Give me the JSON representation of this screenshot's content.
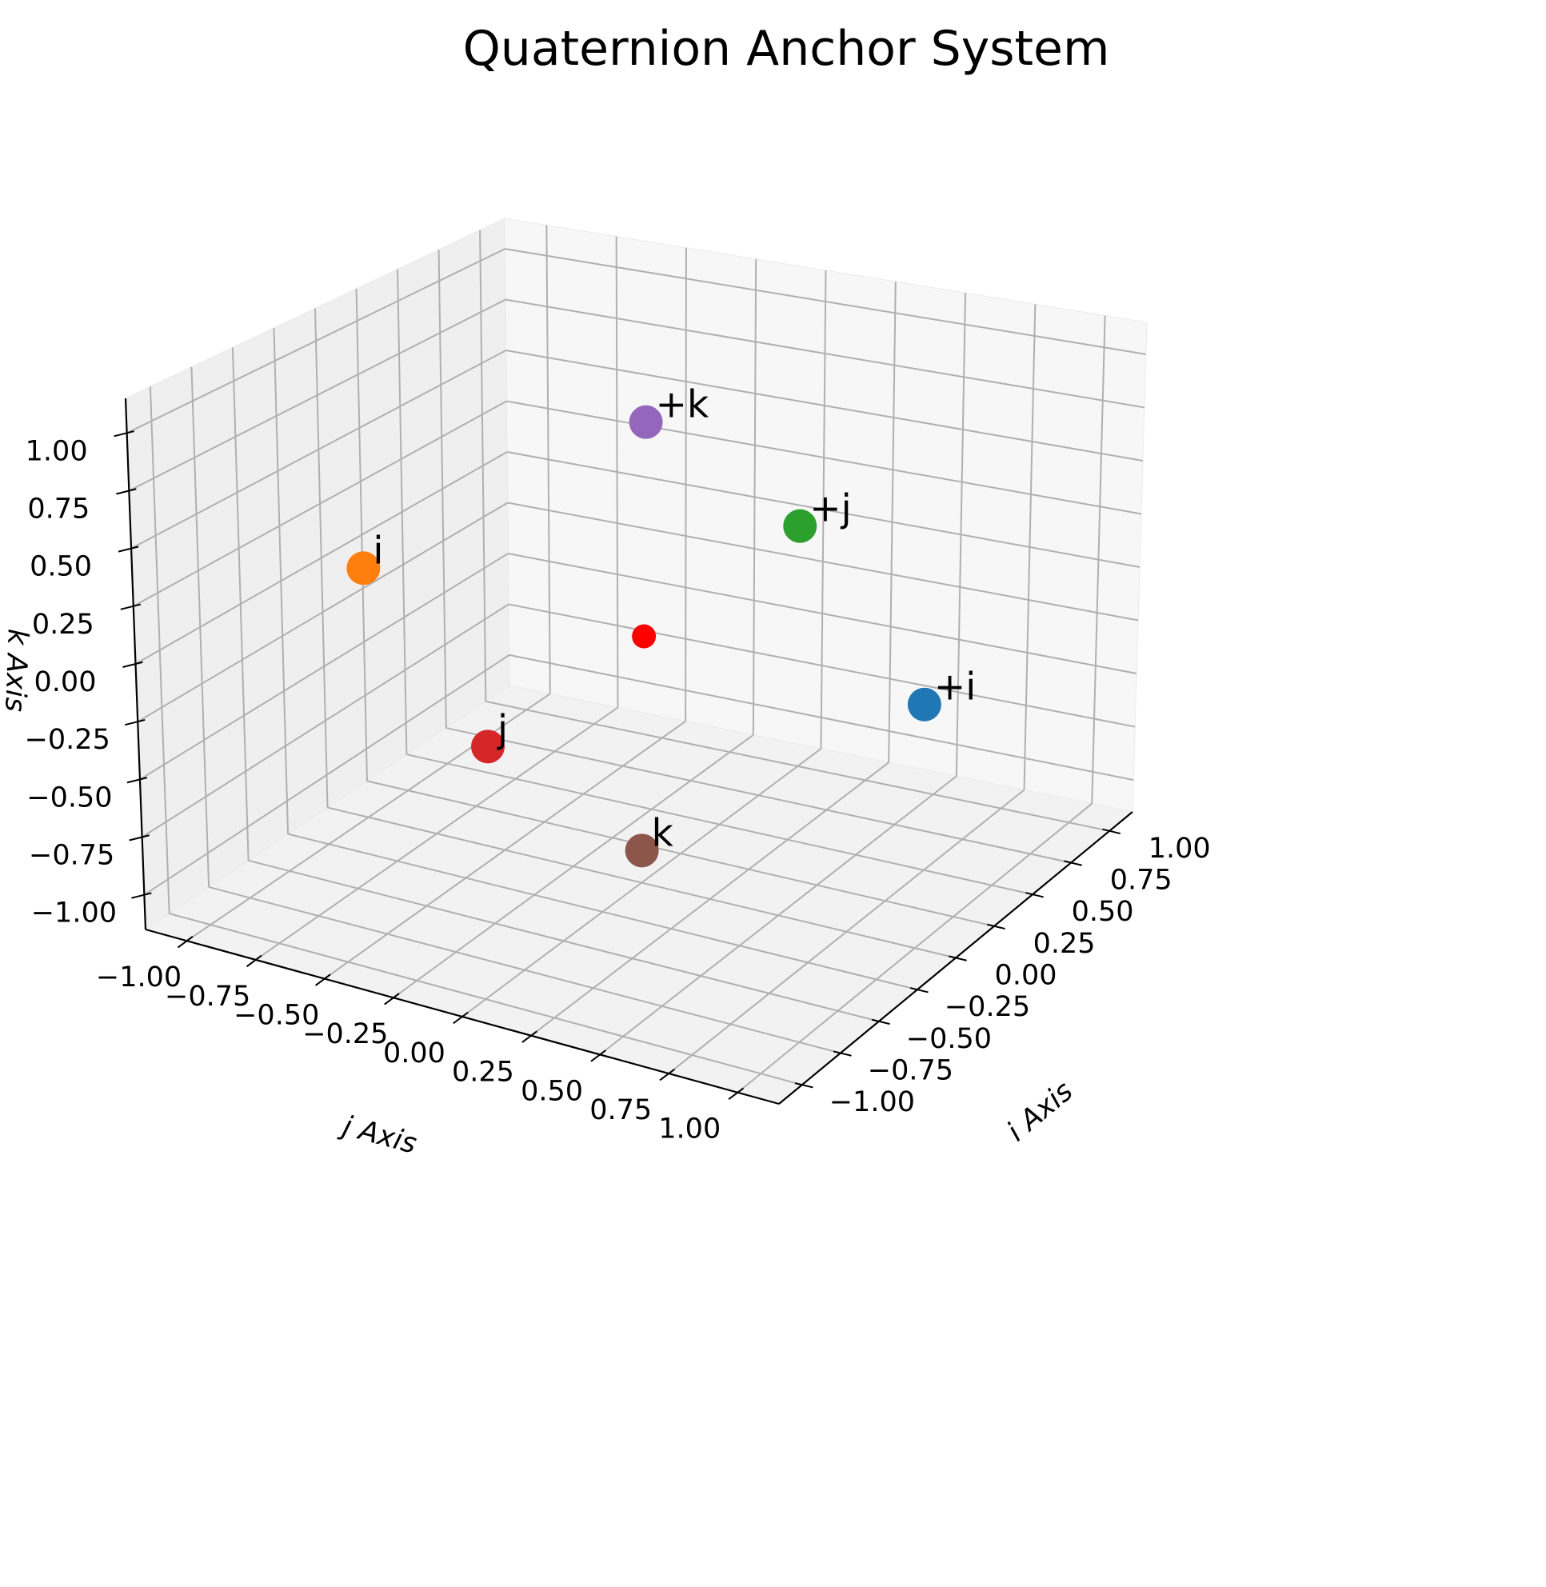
{
  "chart_data": {
    "type": "scatter3d",
    "title": "Quaternion Anchor System",
    "xlabel": "i Axis",
    "ylabel": "j Axis",
    "zlabel": "k Axis",
    "xlim": [
      -1.15,
      1.15
    ],
    "ylim": [
      -1.15,
      1.15
    ],
    "zlim": [
      -1.15,
      1.15
    ],
    "grid": true,
    "ticks": {
      "x": [
        "−1.00",
        "−0.75",
        "−0.50",
        "−0.25",
        "0.00",
        "0.25",
        "0.50",
        "0.75",
        "1.00"
      ],
      "y": [
        "−1.00",
        "−0.75",
        "−0.50",
        "−0.25",
        "0.00",
        "0.25",
        "0.50",
        "0.75",
        "1.00"
      ],
      "z": [
        "−1.00",
        "−0.75",
        "−0.50",
        "−0.25",
        "0.00",
        "0.25",
        "0.50",
        "0.75",
        "1.00"
      ]
    },
    "points": [
      {
        "label": "+i",
        "x": 1,
        "y": 0,
        "z": 0,
        "color": "#1f77b4"
      },
      {
        "label": "i",
        "x": -1,
        "y": 0,
        "z": 0,
        "color": "#ff7f0e"
      },
      {
        "label": "+j",
        "x": 0,
        "y": 1,
        "z": 0,
        "color": "#2ca02c"
      },
      {
        "label": "j",
        "x": 0,
        "y": -1,
        "z": 0,
        "color": "#d62728"
      },
      {
        "label": "+k",
        "x": 0,
        "y": 0,
        "z": 1,
        "color": "#9467bd"
      },
      {
        "label": "k",
        "x": 0,
        "y": 0,
        "z": -1,
        "color": "#8c564b"
      },
      {
        "label": "",
        "x": 0,
        "y": 0,
        "z": 0,
        "color": "#ff0000"
      }
    ]
  }
}
